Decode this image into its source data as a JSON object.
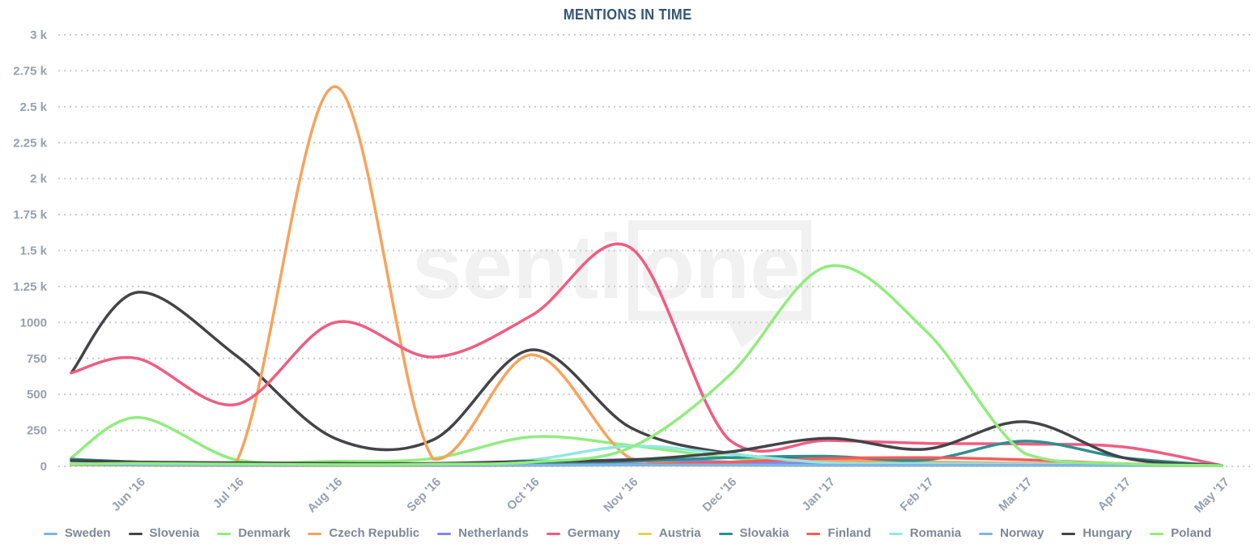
{
  "chart_data": {
    "type": "line",
    "title": "MENTIONS IN TIME",
    "x_labels": [
      "Jun '16",
      "Jul '16",
      "Aug '16",
      "Sep '16",
      "Oct '16",
      "Nov '16",
      "Dec '16",
      "Jan '17",
      "Feb '17",
      "Mar '17",
      "Apr '17",
      "May '17"
    ],
    "x_label_rotation": -45,
    "y_axis": {
      "min": 0,
      "max": 3000,
      "tick_step": 250,
      "labels_bottom_to_top": [
        "0",
        "250",
        "500",
        "750",
        "1000",
        "1.25 k",
        "1.5 k",
        "1.75 k",
        "2 k",
        "2.25 k",
        "2.5 k",
        "2.75 k",
        "3 k"
      ]
    },
    "grid": "dotted horizontal gridlines at every y tick",
    "legend_position": "bottom",
    "sampling_note": "values estimated from curve; first value is at the chart's left edge (~mid-May '16), then one per month Jun '16 through May '17",
    "series": [
      {
        "name": "Sweden",
        "color": "#7cb5ec",
        "values": [
          38,
          26,
          18,
          15,
          14,
          14,
          16,
          14,
          13,
          12,
          12,
          10,
          4
        ]
      },
      {
        "name": "Slovenia",
        "color": "#434348",
        "values": [
          650,
          1210,
          770,
          195,
          185,
          810,
          270,
          90,
          45,
          25,
          15,
          8,
          3
        ]
      },
      {
        "name": "Denmark",
        "color": "#90ed7d",
        "values": [
          60,
          340,
          45,
          35,
          55,
          205,
          145,
          60,
          25,
          15,
          10,
          5,
          3
        ]
      },
      {
        "name": "Czech Republic",
        "color": "#f7a35c",
        "values": [
          15,
          20,
          28,
          2640,
          50,
          775,
          55,
          30,
          40,
          30,
          22,
          8,
          3
        ]
      },
      {
        "name": "Netherlands",
        "color": "#8085e9",
        "values": [
          22,
          16,
          12,
          10,
          12,
          18,
          48,
          30,
          15,
          12,
          10,
          8,
          3
        ]
      },
      {
        "name": "Germany",
        "color": "#f15c80",
        "values": [
          650,
          750,
          430,
          1000,
          760,
          1050,
          1520,
          185,
          180,
          160,
          155,
          135,
          6
        ]
      },
      {
        "name": "Austria",
        "color": "#e4d354",
        "values": [
          10,
          7,
          5,
          5,
          5,
          6,
          8,
          6,
          5,
          5,
          5,
          4,
          2
        ]
      },
      {
        "name": "Slovakia",
        "color": "#2b908f",
        "values": [
          50,
          30,
          18,
          12,
          12,
          18,
          35,
          60,
          70,
          45,
          175,
          60,
          5
        ]
      },
      {
        "name": "Finland",
        "color": "#f45b5b",
        "values": [
          12,
          9,
          7,
          6,
          6,
          8,
          12,
          30,
          55,
          60,
          45,
          18,
          3
        ]
      },
      {
        "name": "Romania",
        "color": "#91e8e1",
        "values": [
          20,
          15,
          12,
          10,
          15,
          45,
          140,
          85,
          25,
          18,
          15,
          10,
          3
        ]
      },
      {
        "name": "Norway",
        "color": "#7cb5ec",
        "values": [
          14,
          10,
          8,
          8,
          8,
          8,
          10,
          9,
          8,
          8,
          8,
          7,
          2
        ]
      },
      {
        "name": "Hungary",
        "color": "#434348",
        "values": [
          40,
          30,
          25,
          20,
          20,
          35,
          45,
          100,
          195,
          120,
          310,
          60,
          5
        ]
      },
      {
        "name": "Poland",
        "color": "#90ed7d",
        "values": [
          15,
          20,
          15,
          12,
          15,
          30,
          130,
          630,
          1390,
          940,
          90,
          18,
          4
        ]
      }
    ],
    "watermark": {
      "text_left": "senti",
      "text_right": "one"
    }
  },
  "ui_colors": {
    "background": "#ffffff",
    "title": "#335571",
    "axis_label": "#97a0ae",
    "legend_label": "#7d8796",
    "gridline": "#cbcbcb",
    "watermark": "#f1f1f1"
  }
}
